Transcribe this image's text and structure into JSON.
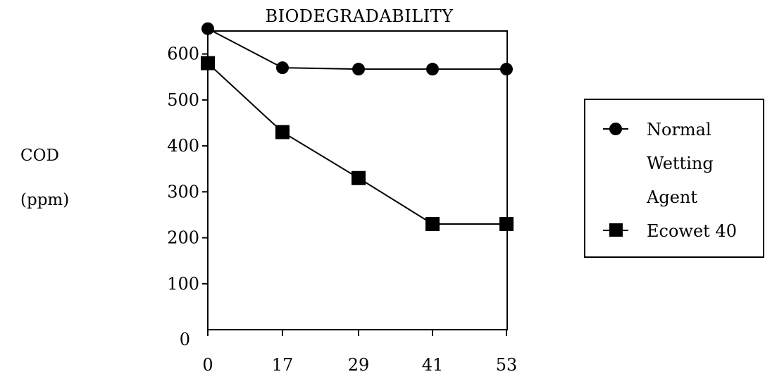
{
  "chart_data": {
    "type": "line",
    "title": "BIODEGRADABILITY",
    "ylabel": [
      "COD",
      "(ppm)"
    ],
    "xlabel": "",
    "x": [
      0,
      17,
      29,
      41,
      53
    ],
    "xticks": [
      "0",
      "17",
      "29",
      "41",
      "53"
    ],
    "ylim": [
      0,
      650
    ],
    "yticks": [
      {
        "value": 0,
        "label": "0"
      },
      {
        "value": 100,
        "label": "100"
      },
      {
        "value": 200,
        "label": "200"
      },
      {
        "value": 300,
        "label": "300"
      },
      {
        "value": 400,
        "label": "400"
      },
      {
        "value": 500,
        "label": "500"
      },
      {
        "value": 600,
        "label": "600"
      }
    ],
    "series": [
      {
        "name": "Normal Wetting Agent",
        "legend_lines": [
          "Normal",
          "Wetting",
          "Agent"
        ],
        "marker": "circle",
        "values": [
          655,
          570,
          567,
          567,
          567
        ]
      },
      {
        "name": "Ecowet 40",
        "legend_lines": [
          "Ecowet 40"
        ],
        "marker": "square",
        "values": [
          580,
          430,
          330,
          230,
          230
        ]
      }
    ],
    "grid": false,
    "legend_position": "right"
  }
}
